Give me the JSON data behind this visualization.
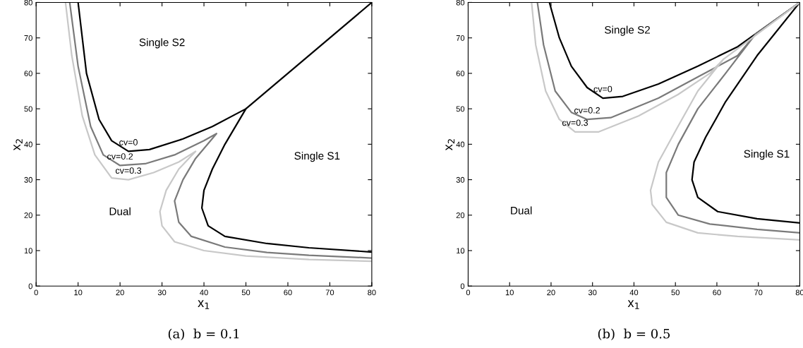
{
  "chart_data": [
    {
      "type": "line",
      "title": "(a)  b = 0.1",
      "xlabel": "x$_{1}$",
      "ylabel": "x$_{2}$",
      "xlim": [
        0,
        80
      ],
      "ylim": [
        0,
        80
      ],
      "xticks": [
        0,
        10,
        20,
        30,
        40,
        50,
        60,
        70,
        80
      ],
      "yticks": [
        0,
        10,
        20,
        30,
        40,
        50,
        60,
        70,
        80
      ],
      "grid": false,
      "legend": false,
      "series": [
        {
          "name": "cv=0",
          "color": "#000000",
          "x": [
            10,
            12,
            15,
            18,
            22,
            27,
            35,
            42,
            50,
            80,
            null,
            50,
            45,
            42,
            40,
            39.5,
            41,
            45,
            55,
            65,
            80
          ],
          "values": [
            80,
            60,
            47,
            41,
            38,
            38.5,
            41.5,
            45,
            50,
            80,
            null,
            50,
            40,
            33,
            27,
            22,
            17,
            14,
            12,
            10.8,
            9.6
          ]
        },
        {
          "name": "cv=0.2",
          "color": "#7a7a7a",
          "x": [
            8,
            10,
            13,
            16,
            20,
            26,
            33,
            40,
            43,
            38,
            35,
            33,
            34,
            37,
            45,
            55,
            65,
            80
          ],
          "values": [
            80,
            62,
            45,
            37,
            34,
            34.5,
            37,
            41,
            43,
            36,
            30,
            24,
            18,
            14,
            11,
            9.5,
            8.7,
            7.9
          ]
        },
        {
          "name": "cv=0.3",
          "color": "#c8c8c8",
          "x": [
            7,
            8.5,
            11,
            14,
            18,
            22,
            28,
            34,
            38,
            34,
            31,
            29.5,
            30,
            33,
            40,
            50,
            65,
            80
          ],
          "values": [
            80,
            65,
            48,
            37,
            30.5,
            30,
            32,
            35,
            38,
            33,
            27,
            21,
            17,
            12.5,
            10,
            8.5,
            7.5,
            7
          ]
        }
      ],
      "annotations": [
        "Single S2",
        "Single S1",
        "Dual"
      ]
    },
    {
      "type": "line",
      "title": "(b)  b = 0.5",
      "xlabel": "x$_{1}$",
      "ylabel": "x$_{2}$",
      "xlim": [
        0,
        80
      ],
      "ylim": [
        0,
        80
      ],
      "xticks": [
        0,
        10,
        20,
        30,
        40,
        50,
        60,
        70,
        80
      ],
      "yticks": [
        0,
        10,
        20,
        30,
        40,
        50,
        60,
        70,
        80
      ],
      "grid": false,
      "legend": false,
      "series": [
        {
          "name": "cv=0",
          "color": "#000000",
          "x": [
            19.6,
            22,
            24.9,
            28.7,
            32.5,
            37.3,
            45.9,
            55.4,
            65,
            80,
            69.7,
            62.1,
            57.3,
            54.5,
            54,
            55.4,
            60.2,
            69.7,
            80
          ],
          "values": [
            80,
            70,
            62,
            56,
            53,
            53.5,
            57,
            62,
            67.5,
            80,
            65,
            52,
            42,
            35,
            30,
            25,
            21,
            19,
            17.8
          ]
        },
        {
          "name": "cv=0.2",
          "color": "#7a7a7a",
          "x": [
            16.7,
            18.2,
            21,
            24.9,
            28.7,
            34.4,
            45.9,
            55.4,
            65,
            69.3,
            80,
            null,
            69.3,
            62.1,
            55.4,
            50.7,
            47.8,
            47.8,
            50.7,
            58.3,
            69.7,
            80
          ],
          "values": [
            80,
            68,
            55,
            49,
            47,
            47.5,
            53,
            59,
            65,
            71,
            80,
            null,
            71,
            60,
            50,
            40,
            32,
            25,
            20,
            17.5,
            16,
            15
          ]
        },
        {
          "name": "cv=0.3",
          "color": "#c8c8c8",
          "x": [
            15.3,
            16.3,
            18.7,
            22,
            25.8,
            31.5,
            41.1,
            50.6,
            58.3,
            61.6,
            80,
            null,
            61.6,
            55.4,
            50.6,
            45.9,
            44,
            44.4,
            47.8,
            55.4,
            65,
            80
          ],
          "values": [
            80,
            68,
            55,
            47,
            43.5,
            43.5,
            48,
            54,
            60,
            64,
            80,
            null,
            64,
            55,
            45,
            35,
            27,
            23,
            18,
            15,
            14,
            13
          ]
        }
      ],
      "annotations": [
        "Single S2",
        "Single S1",
        "Dual"
      ]
    }
  ]
}
